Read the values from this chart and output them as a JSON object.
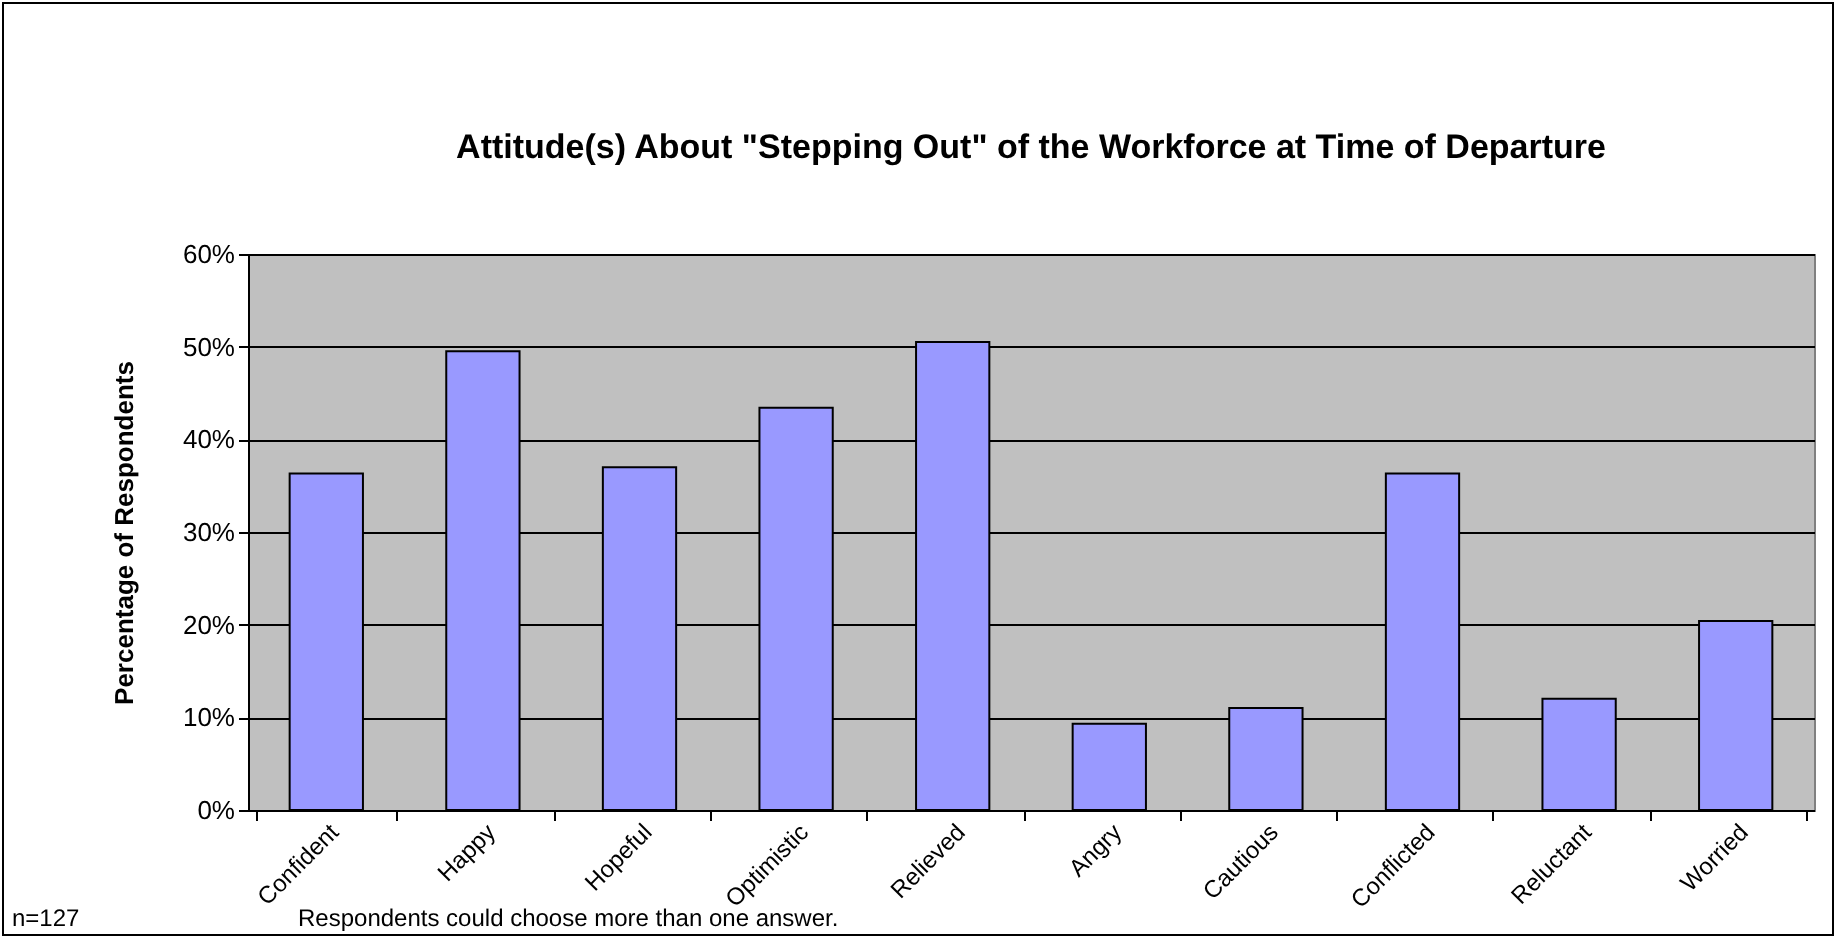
{
  "chart_data": {
    "type": "bar",
    "title": "Attitude(s) About \"Stepping Out\" of the Workforce at Time of Departure",
    "ylabel": "Percentage of Respondents",
    "categories": [
      "Confident",
      "Happy",
      "Hopeful",
      "Optimistic",
      "Relieved",
      "Angry",
      "Cautious",
      "Conflicted",
      "Reluctant",
      "Worried"
    ],
    "values": [
      36.3,
      49.5,
      37,
      43.4,
      50.5,
      9.3,
      11,
      36.3,
      12,
      20.4
    ],
    "color": "#9999ff",
    "ylim": [
      0,
      60
    ],
    "yticks": [
      {
        "value": 0,
        "label": "0%"
      },
      {
        "value": 10,
        "label": "10%"
      },
      {
        "value": 20,
        "label": "20%"
      },
      {
        "value": 30,
        "label": "30%"
      },
      {
        "value": 40,
        "label": "40%"
      },
      {
        "value": 50,
        "label": "50%"
      },
      {
        "value": 60,
        "label": "60%"
      }
    ],
    "grid": "y",
    "annotations": [
      "n=127",
      "Respondents could choose more than one answer."
    ]
  }
}
